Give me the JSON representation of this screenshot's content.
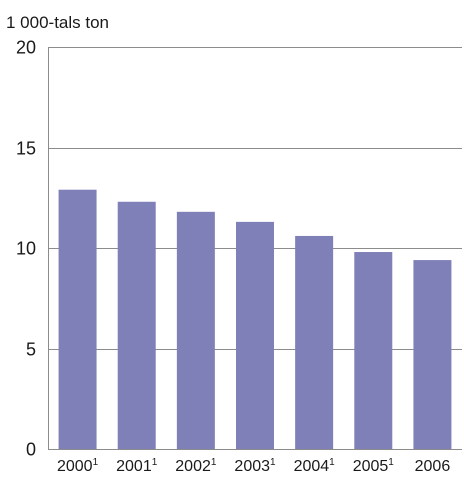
{
  "chart_data": {
    "type": "bar",
    "title": "",
    "xlabel": "",
    "ylabel": "1 000-tals ton",
    "ylim": [
      0,
      20
    ],
    "yticks": [
      0,
      5,
      10,
      15,
      20
    ],
    "grid": true,
    "categories": [
      {
        "label": "2000",
        "note": "1"
      },
      {
        "label": "2001",
        "note": "1"
      },
      {
        "label": "2002",
        "note": "1"
      },
      {
        "label": "2003",
        "note": "1"
      },
      {
        "label": "2004",
        "note": "1"
      },
      {
        "label": "2005",
        "note": "1"
      },
      {
        "label": "2006",
        "note": ""
      }
    ],
    "values": [
      12.9,
      12.3,
      11.8,
      11.3,
      10.6,
      9.8,
      9.4
    ],
    "colors": {
      "bar": "#8080b8",
      "grid": "#8c8c8c"
    }
  }
}
